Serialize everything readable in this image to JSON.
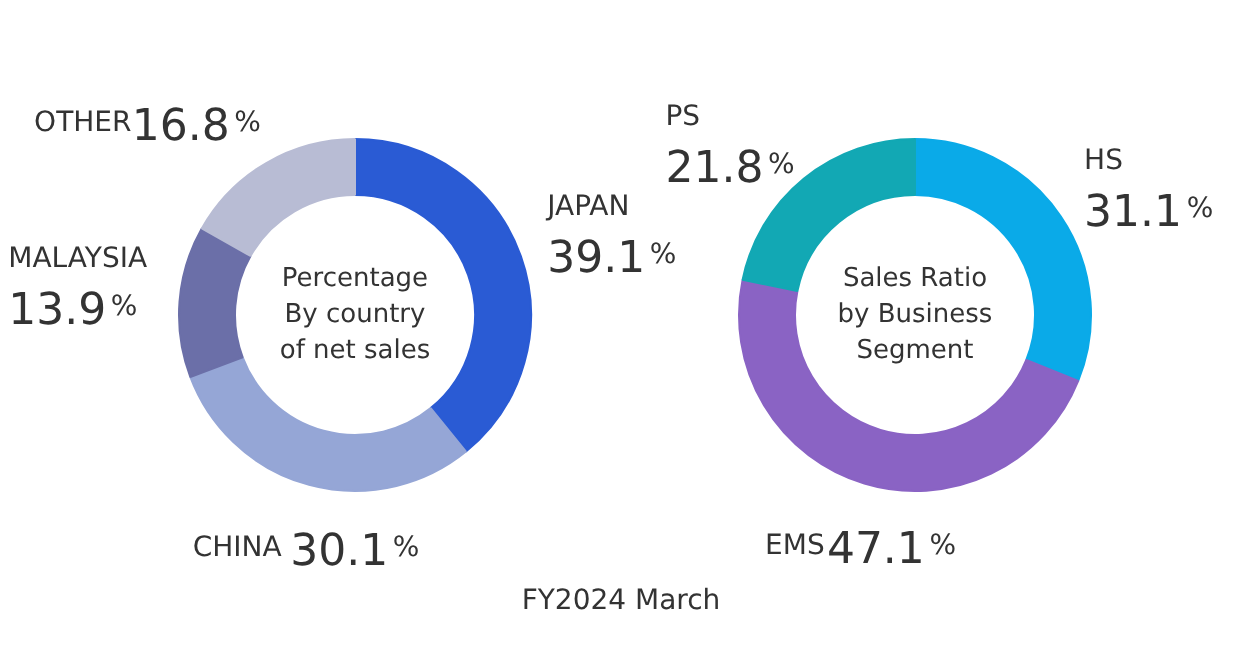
{
  "chart_data": [
    {
      "type": "donut",
      "title": "Percentage\nBy country\nof net sales",
      "categories": [
        "JAPAN",
        "CHINA",
        "MALAYSIA",
        "OTHER"
      ],
      "values": [
        39.1,
        30.1,
        13.9,
        16.8
      ],
      "colors": [
        "#2a5bd4",
        "#95a6d6",
        "#6b6fa8",
        "#b8bcd4"
      ],
      "value_labels": [
        "39.1%",
        "30.1%",
        "13.9%",
        "16.8%"
      ],
      "annotations": [
        "FY2024 March"
      ]
    },
    {
      "type": "donut",
      "title": "Sales Ratio\nby Business\nSegment",
      "categories": [
        "HS",
        "EMS",
        "PS"
      ],
      "values": [
        31.1,
        47.1,
        21.8
      ],
      "colors": [
        "#0aaae8",
        "#8a63c4",
        "#12a8b4"
      ],
      "value_labels": [
        "31.1%",
        "47.1%",
        "21.8%"
      ]
    }
  ]
}
